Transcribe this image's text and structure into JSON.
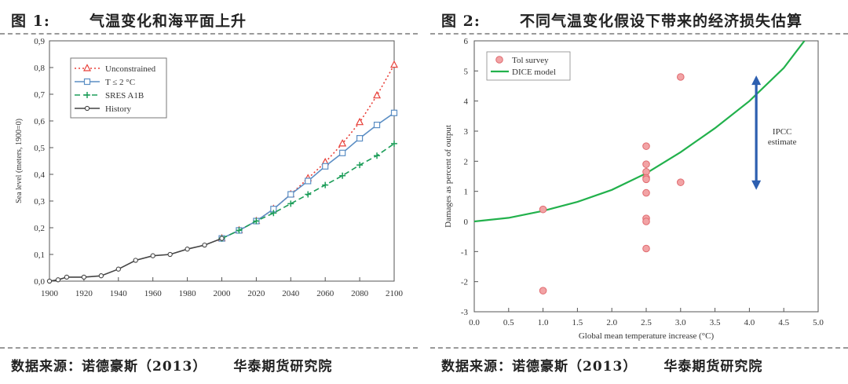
{
  "figures": [
    {
      "label": "图 1:",
      "title": "气温变化和海平面上升",
      "source": "数据来源：诺德豪斯（2013）",
      "org": "华泰期货研究院"
    },
    {
      "label": "图 2:",
      "title": "不同气温变化假设下带来的经济损失估算",
      "source": "数据来源：诺德豪斯（2013）",
      "org": "华泰期货研究院"
    }
  ],
  "chart_data": [
    {
      "type": "line",
      "title": "",
      "xlabel": "",
      "ylabel": "Sea level (meters, 1900=0)",
      "xlim": [
        1900,
        2100
      ],
      "ylim": [
        0,
        0.9
      ],
      "xticks": [
        1900,
        1920,
        1940,
        1960,
        1980,
        2000,
        2020,
        2040,
        2060,
        2080,
        2100
      ],
      "yticks": [
        0.0,
        0.1,
        0.2,
        0.3,
        0.4,
        0.5,
        0.6,
        0.7,
        0.8,
        0.9
      ],
      "ytick_labels": [
        "0,0",
        "0,1",
        "0,2",
        "0,3",
        "0,4",
        "0,5",
        "0,6",
        "0,7",
        "0,8",
        "0,9"
      ],
      "legend": "top-left",
      "series": [
        {
          "name": "Unconstrained",
          "color": "#e8413a",
          "style": "dotted",
          "marker": "triangle",
          "x": [
            2000,
            2010,
            2020,
            2030,
            2040,
            2050,
            2060,
            2070,
            2080,
            2090,
            2100
          ],
          "values": [
            0.16,
            0.19,
            0.225,
            0.27,
            0.325,
            0.385,
            0.445,
            0.515,
            0.595,
            0.695,
            0.81
          ]
        },
        {
          "name": "T ≤ 2 °C",
          "color": "#5b8ec4",
          "style": "solid",
          "marker": "square",
          "x": [
            2000,
            2010,
            2020,
            2030,
            2040,
            2050,
            2060,
            2070,
            2080,
            2090,
            2100
          ],
          "values": [
            0.16,
            0.19,
            0.225,
            0.27,
            0.325,
            0.375,
            0.43,
            0.48,
            0.535,
            0.585,
            0.63
          ]
        },
        {
          "name": "SRES A1B",
          "color": "#1e9e5a",
          "style": "dashed",
          "marker": "plus",
          "x": [
            2000,
            2010,
            2020,
            2030,
            2040,
            2050,
            2060,
            2070,
            2080,
            2090,
            2100
          ],
          "values": [
            0.16,
            0.19,
            0.225,
            0.255,
            0.29,
            0.325,
            0.36,
            0.395,
            0.435,
            0.47,
            0.515
          ]
        },
        {
          "name": "History",
          "color": "#444444",
          "style": "solid",
          "marker": "circle",
          "x": [
            1900,
            1905,
            1910,
            1920,
            1930,
            1940,
            1950,
            1960,
            1970,
            1980,
            1990,
            2000
          ],
          "values": [
            0.0,
            0.005,
            0.015,
            0.015,
            0.02,
            0.045,
            0.078,
            0.095,
            0.1,
            0.12,
            0.135,
            0.16
          ]
        }
      ]
    },
    {
      "type": "scatter",
      "title": "",
      "xlabel": "Global mean temperature increase (°C)",
      "ylabel": "Damages as percent of output",
      "xlim": [
        0,
        5
      ],
      "ylim": [
        -3,
        6
      ],
      "xticks": [
        0.0,
        0.5,
        1.0,
        1.5,
        2.0,
        2.5,
        3.0,
        3.5,
        4.0,
        4.5,
        5.0
      ],
      "yticks": [
        -3,
        -2,
        -1,
        0,
        1,
        2,
        3,
        4,
        5,
        6
      ],
      "legend": "top-left",
      "series": [
        {
          "name": "Tol survey",
          "type": "scatter",
          "color": "#f2a3a5",
          "x": [
            1.0,
            1.0,
            2.5,
            2.5,
            2.5,
            2.5,
            2.5,
            2.5,
            2.5,
            2.5,
            2.5,
            3.0,
            3.0
          ],
          "values": [
            0.4,
            -2.3,
            2.5,
            1.9,
            1.65,
            1.45,
            0.95,
            0.1,
            0.0,
            -0.9,
            1.4,
            4.8,
            1.3
          ]
        },
        {
          "name": "DICE model",
          "type": "line",
          "color": "#22b14c",
          "x": [
            0.0,
            0.5,
            1.0,
            1.5,
            2.0,
            2.5,
            3.0,
            3.5,
            4.0,
            4.5,
            4.8
          ],
          "values": [
            0.0,
            0.12,
            0.35,
            0.65,
            1.05,
            1.6,
            2.3,
            3.1,
            4.0,
            5.1,
            6.0
          ]
        }
      ],
      "annotations": [
        {
          "text": "IPCC estimate",
          "lines": [
            "IPCC",
            "estimate"
          ],
          "arrow_x": 4.1,
          "arrow_y": [
            1.05,
            4.85
          ],
          "color": "#2d5fb0"
        }
      ]
    }
  ]
}
